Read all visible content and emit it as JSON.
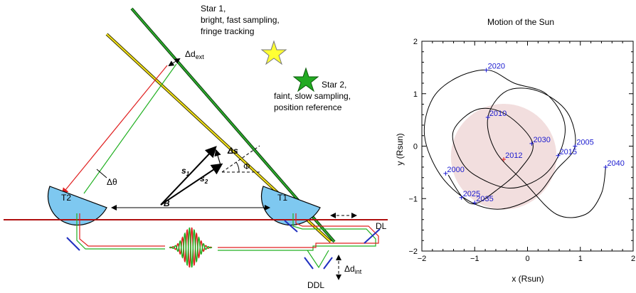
{
  "diagram": {
    "star1": [
      "Star 1,",
      "bright, fast sampling,",
      "fringe tracking"
    ],
    "star2": [
      "Star 2,",
      "faint, slow sampling,",
      "position reference"
    ],
    "delta_d_ext": {
      "base": "Δd",
      "sub": "ext"
    },
    "delta_d_int": {
      "base": "Δd",
      "sub": "int"
    },
    "delta_theta": "Δθ",
    "delta_s": "Δs",
    "phi": "Φ",
    "s1": {
      "base": "s",
      "sub": "1"
    },
    "s2": {
      "base": "s",
      "sub": "2"
    },
    "baseline": "B",
    "t1": "T1",
    "t2": "T2",
    "dl": "DL",
    "ddl": "DDL",
    "colors": {
      "star1": "#ffff33",
      "star2": "#22aa22",
      "telescope": "#7ec8f0",
      "red_beam": "#e02020",
      "green_beam": "#20b020"
    }
  },
  "chart_data": {
    "type": "line",
    "title": "Motion of the Sun",
    "xlabel": "x (Rsun)",
    "ylabel": "y (Rsun)",
    "xlim": [
      -2,
      2
    ],
    "ylim": [
      -2,
      2
    ],
    "xticks": [
      "−2",
      "−1",
      "0",
      "1",
      "2"
    ],
    "yticks": [
      "−2",
      "−1",
      "0",
      "1",
      "2"
    ],
    "sun_disk": {
      "center": [
        -0.45,
        -0.2
      ],
      "radius": 1.0,
      "color": "#f2dede"
    },
    "path": [
      [
        -1.5,
        -0.55
      ],
      [
        -1.25,
        -0.95
      ],
      [
        -1.0,
        -1.1
      ],
      [
        -0.6,
        -0.85
      ],
      [
        -0.15,
        -0.45
      ],
      [
        0.1,
        0.05
      ],
      [
        -0.4,
        0.6
      ],
      [
        -0.95,
        0.7
      ],
      [
        -1.4,
        0.3
      ],
      [
        -1.3,
        -0.2
      ],
      [
        -1.0,
        -0.55
      ],
      [
        -0.35,
        -0.8
      ],
      [
        0.25,
        -0.6
      ],
      [
        0.6,
        -0.15
      ],
      [
        0.7,
        0.45
      ],
      [
        0.35,
        1.0
      ],
      [
        -0.25,
        1.2
      ],
      [
        -0.75,
        1.45
      ],
      [
        -1.35,
        1.3
      ],
      [
        -1.8,
        0.9
      ],
      [
        -1.95,
        0.2
      ],
      [
        -1.65,
        -0.55
      ],
      [
        -1.1,
        -1.05
      ],
      [
        -0.5,
        -1.2
      ],
      [
        0.15,
        -0.95
      ],
      [
        0.55,
        -0.45
      ],
      [
        0.9,
        0.0
      ],
      [
        0.75,
        0.65
      ],
      [
        0.2,
        1.05
      ],
      [
        -0.4,
        1.05
      ],
      [
        -0.75,
        0.55
      ],
      [
        -0.6,
        -0.1
      ],
      [
        -0.05,
        -0.7
      ],
      [
        0.55,
        -1.3
      ],
      [
        1.1,
        -1.3
      ],
      [
        1.4,
        -0.9
      ],
      [
        1.48,
        -0.4
      ]
    ],
    "points": [
      {
        "label": "2000",
        "x": -1.55,
        "y": -0.52,
        "color": "#1a1ad0"
      },
      {
        "label": "2005",
        "x": 0.9,
        "y": 0.0,
        "color": "#1a1ad0"
      },
      {
        "label": "2010",
        "x": -0.75,
        "y": 0.55,
        "color": "#1a1ad0"
      },
      {
        "label": "2012",
        "x": -0.45,
        "y": -0.25,
        "color": "#e02020"
      },
      {
        "label": "2015",
        "x": 0.58,
        "y": -0.18,
        "color": "#1a1ad0"
      },
      {
        "label": "2020",
        "x": -0.78,
        "y": 1.45,
        "color": "#1a1ad0"
      },
      {
        "label": "2025",
        "x": -1.25,
        "y": -0.98,
        "color": "#1a1ad0"
      },
      {
        "label": "2030",
        "x": 0.08,
        "y": 0.05,
        "color": "#1a1ad0"
      },
      {
        "label": "2035",
        "x": -1.0,
        "y": -1.08,
        "color": "#1a1ad0"
      },
      {
        "label": "2040",
        "x": 1.48,
        "y": -0.4,
        "color": "#1a1ad0"
      }
    ]
  }
}
